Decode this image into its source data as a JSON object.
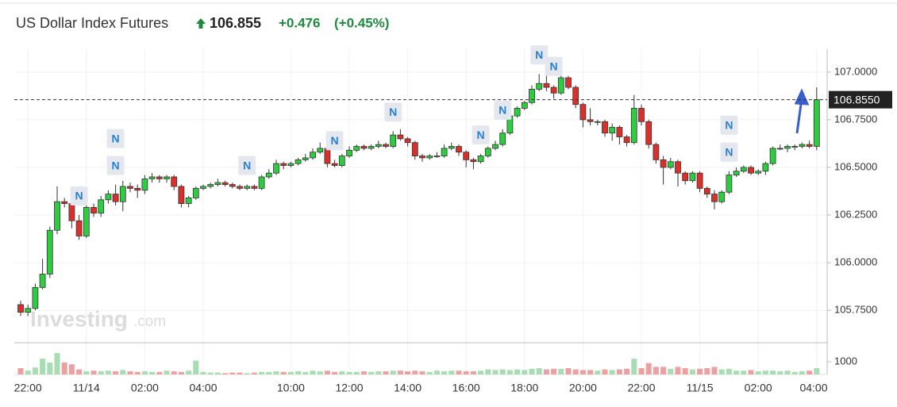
{
  "chart_data": {
    "type": "candlestick",
    "title": "US Dollar Index Futures",
    "price_label": "106.855",
    "change_label": "+0.476",
    "change_pct_label": "(+0.45%)",
    "watermark": [
      "Investing",
      ".com"
    ],
    "categories": [
      null,
      "22:00",
      null,
      null,
      null,
      null,
      null,
      null,
      null,
      "11/14",
      null,
      null,
      null,
      null,
      null,
      null,
      null,
      "02:00",
      null,
      null,
      null,
      null,
      null,
      null,
      null,
      "04:00",
      null,
      null,
      null,
      null,
      null,
      null,
      null,
      null,
      null,
      null,
      null,
      "10:00",
      null,
      null,
      null,
      null,
      null,
      null,
      null,
      "12:00",
      null,
      null,
      null,
      null,
      null,
      null,
      null,
      "14:00",
      null,
      null,
      null,
      null,
      null,
      null,
      null,
      "16:00",
      null,
      null,
      null,
      null,
      null,
      null,
      null,
      "18:00",
      null,
      null,
      null,
      null,
      null,
      null,
      null,
      "20:00",
      null,
      null,
      null,
      null,
      null,
      null,
      null,
      "22:00",
      null,
      null,
      null,
      null,
      null,
      null,
      null,
      "11/15",
      null,
      null,
      null,
      null,
      null,
      null,
      null,
      "02:00",
      null,
      null,
      null,
      null,
      null,
      null,
      null,
      "04:00"
    ],
    "open": [
      105.78,
      105.74,
      105.76,
      105.87,
      105.94,
      106.17,
      106.32,
      106.31,
      106.22,
      106.14,
      106.29,
      106.26,
      106.33,
      106.36,
      106.32,
      106.4,
      106.39,
      106.38,
      106.44,
      106.45,
      106.44,
      106.45,
      106.4,
      106.31,
      106.34,
      106.39,
      106.4,
      106.41,
      106.42,
      106.41,
      106.4,
      106.39,
      106.4,
      106.39,
      106.45,
      106.47,
      106.52,
      106.51,
      106.52,
      106.54,
      106.55,
      106.58,
      106.6,
      106.52,
      106.51,
      106.56,
      106.59,
      106.61,
      106.6,
      106.61,
      106.62,
      106.61,
      106.67,
      106.65,
      106.63,
      106.56,
      106.55,
      106.56,
      106.56,
      106.6,
      106.61,
      106.58,
      106.54,
      106.53,
      106.56,
      106.6,
      106.62,
      106.68,
      106.77,
      106.81,
      106.84,
      106.91,
      106.94,
      106.92,
      106.89,
      106.97,
      106.92,
      106.83,
      106.75,
      106.74,
      106.74,
      106.68,
      106.71,
      106.66,
      106.63,
      106.81,
      106.74,
      106.62,
      106.54,
      106.5,
      106.53,
      106.47,
      106.43,
      106.47,
      106.39,
      106.36,
      106.32,
      106.37,
      106.46,
      106.48,
      106.5,
      106.47,
      106.48,
      106.52,
      106.6,
      106.6,
      106.61,
      106.61,
      106.62,
      106.61
    ],
    "high": [
      105.8,
      105.78,
      105.89,
      106.02,
      106.19,
      106.4,
      106.34,
      106.33,
      106.25,
      106.31,
      106.31,
      106.35,
      106.38,
      106.41,
      106.43,
      106.42,
      106.41,
      106.46,
      106.47,
      106.46,
      106.46,
      106.46,
      106.41,
      106.35,
      106.4,
      106.41,
      106.42,
      106.44,
      106.43,
      106.42,
      106.41,
      106.41,
      106.41,
      106.46,
      106.49,
      106.54,
      106.53,
      106.53,
      106.55,
      106.57,
      106.6,
      106.63,
      106.61,
      106.54,
      106.57,
      106.61,
      106.62,
      106.62,
      106.62,
      106.64,
      106.63,
      106.69,
      106.7,
      106.66,
      106.64,
      106.57,
      106.57,
      106.58,
      106.62,
      106.63,
      106.62,
      106.59,
      106.55,
      106.57,
      106.61,
      106.64,
      106.7,
      106.79,
      106.82,
      106.85,
      106.93,
      106.99,
      107.0,
      106.93,
      107.01,
      106.98,
      106.93,
      106.84,
      106.81,
      106.75,
      106.75,
      106.73,
      106.72,
      106.67,
      106.88,
      106.83,
      106.75,
      106.63,
      106.56,
      106.55,
      106.54,
      106.48,
      106.48,
      106.48,
      106.4,
      106.38,
      106.38,
      106.48,
      106.5,
      106.51,
      106.51,
      106.49,
      106.53,
      106.61,
      106.62,
      106.62,
      106.62,
      106.63,
      106.64,
      106.92
    ],
    "low": [
      105.72,
      105.72,
      105.75,
      105.86,
      105.92,
      106.15,
      106.29,
      106.18,
      106.12,
      106.13,
      106.24,
      106.24,
      106.31,
      106.3,
      106.27,
      106.37,
      106.34,
      106.36,
      106.42,
      106.42,
      106.42,
      106.38,
      106.29,
      106.29,
      106.33,
      106.38,
      106.39,
      106.4,
      106.4,
      106.39,
      106.38,
      106.38,
      106.38,
      106.38,
      106.44,
      106.46,
      106.49,
      106.5,
      106.51,
      106.53,
      106.54,
      106.57,
      106.5,
      106.5,
      106.5,
      106.55,
      106.58,
      106.59,
      106.59,
      106.6,
      106.6,
      106.6,
      106.64,
      106.61,
      106.54,
      106.53,
      106.54,
      106.55,
      106.55,
      106.59,
      106.56,
      106.5,
      106.49,
      106.52,
      106.55,
      106.59,
      106.61,
      106.67,
      106.76,
      106.8,
      106.83,
      106.9,
      106.9,
      106.86,
      106.88,
      106.91,
      106.81,
      106.71,
      106.72,
      106.72,
      106.66,
      106.64,
      106.62,
      106.61,
      106.62,
      106.72,
      106.6,
      106.52,
      106.41,
      106.49,
      106.4,
      106.41,
      106.42,
      106.37,
      106.34,
      106.28,
      106.31,
      106.36,
      106.45,
      106.47,
      106.46,
      106.46,
      106.46,
      106.51,
      106.59,
      106.58,
      106.59,
      106.6,
      106.6,
      106.59
    ],
    "close": [
      105.74,
      105.76,
      105.87,
      105.94,
      106.17,
      106.32,
      106.31,
      106.22,
      106.14,
      106.29,
      106.26,
      106.33,
      106.36,
      106.32,
      106.4,
      106.39,
      106.38,
      106.44,
      106.45,
      106.44,
      106.45,
      106.4,
      106.31,
      106.34,
      106.39,
      106.4,
      106.41,
      106.42,
      106.41,
      106.4,
      106.39,
      106.4,
      106.39,
      106.45,
      106.47,
      106.52,
      106.51,
      106.52,
      106.54,
      106.55,
      106.58,
      106.6,
      106.52,
      106.51,
      106.56,
      106.59,
      106.61,
      106.6,
      106.61,
      106.62,
      106.61,
      106.67,
      106.65,
      106.63,
      106.56,
      106.55,
      106.56,
      106.56,
      106.6,
      106.61,
      106.58,
      106.54,
      106.53,
      106.56,
      106.6,
      106.62,
      106.68,
      106.77,
      106.81,
      106.84,
      106.91,
      106.94,
      106.92,
      106.89,
      106.97,
      106.92,
      106.83,
      106.75,
      106.74,
      106.74,
      106.68,
      106.71,
      106.66,
      106.63,
      106.81,
      106.74,
      106.62,
      106.54,
      106.5,
      106.53,
      106.47,
      106.43,
      106.47,
      106.39,
      106.36,
      106.32,
      106.37,
      106.46,
      106.48,
      106.5,
      106.47,
      106.48,
      106.52,
      106.6,
      106.6,
      106.61,
      106.61,
      106.62,
      106.61,
      106.855
    ],
    "volume": [
      500,
      300,
      550,
      1250,
      950,
      1700,
      950,
      800,
      400,
      250,
      300,
      250,
      300,
      250,
      350,
      250,
      200,
      250,
      200,
      200,
      300,
      250,
      200,
      300,
      1100,
      200,
      150,
      150,
      100,
      150,
      150,
      100,
      150,
      200,
      200,
      250,
      200,
      200,
      250,
      200,
      300,
      250,
      300,
      200,
      250,
      200,
      200,
      250,
      200,
      250,
      250,
      300,
      300,
      250,
      300,
      250,
      200,
      300,
      250,
      300,
      300,
      250,
      250,
      300,
      400,
      350,
      400,
      350,
      400,
      350,
      450,
      500,
      400,
      450,
      450,
      500,
      400,
      350,
      350,
      300,
      400,
      350,
      400,
      450,
      1250,
      500,
      900,
      600,
      600,
      450,
      600,
      500,
      400,
      450,
      500,
      600,
      400,
      450,
      300,
      300,
      350,
      250,
      300,
      300,
      250,
      300,
      200,
      250,
      300,
      500
    ],
    "up_color": "#2ecc40",
    "down_color": "#d9302c",
    "volume_up_color": "#a8dcb2",
    "volume_down_color": "#eba1a1",
    "ylim": [
      105.58,
      107.12
    ],
    "yticks": [
      {
        "value": 105.75,
        "label": "105.7500"
      },
      {
        "value": 106,
        "label": "106.0000"
      },
      {
        "value": 106.25,
        "label": "106.2500"
      },
      {
        "value": 106.5,
        "label": "106.5000"
      },
      {
        "value": 106.75,
        "label": "106.7500"
      },
      {
        "value": 107,
        "label": "107.0000"
      }
    ],
    "volume_ylim": [
      0,
      2450
    ],
    "volume_yticks": [
      1000
    ],
    "last_value": 106.855,
    "last_label": "106.8550",
    "grid": true,
    "news": [
      {
        "label": "N",
        "at": 8
      },
      {
        "label": "N",
        "at": 13
      },
      {
        "label": "N",
        "at": 13
      },
      {
        "label": "N",
        "at": 31
      },
      {
        "label": "N",
        "at": 43
      },
      {
        "label": "N",
        "at": 51
      },
      {
        "label": "N",
        "at": 63
      },
      {
        "label": "N",
        "at": 66
      },
      {
        "label": "N",
        "at": 71
      },
      {
        "label": "N",
        "at": 73
      },
      {
        "label": "N",
        "at": 97
      },
      {
        "label": "N",
        "at": 97
      }
    ]
  }
}
